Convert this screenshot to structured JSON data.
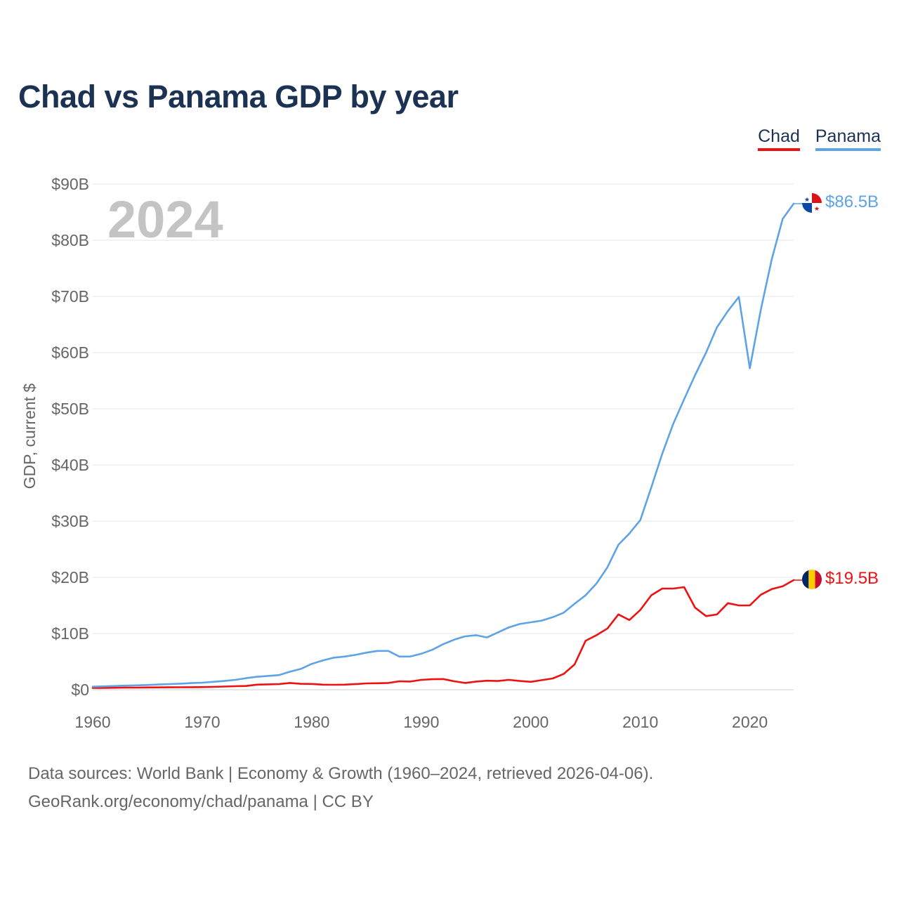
{
  "header": {
    "title": "Chad vs Panama GDP by year"
  },
  "legend": {
    "items": [
      {
        "label": "Chad",
        "color": "#ee1111"
      },
      {
        "label": "Panama",
        "color": "#5da3e6"
      }
    ]
  },
  "year_watermark": "2024",
  "end_labels": {
    "panama": "$86.5B",
    "chad": "$19.5B"
  },
  "footer": {
    "line1": "Data sources: World Bank | Economy & Growth (1960–2024, retrieved 2026-04-06).",
    "line2": "GeoRank.org/economy/chad/panama | CC BY"
  },
  "chart_data": {
    "type": "line",
    "title": "Chad vs Panama GDP by year",
    "xlabel": "",
    "ylabel": "GDP, current $",
    "xlim": [
      1960,
      2024
    ],
    "ylim": [
      0,
      90
    ],
    "x_ticks": [
      1960,
      1970,
      1980,
      1990,
      2000,
      2010,
      2020
    ],
    "x_tick_labels": [
      "1960",
      "1970",
      "1980",
      "1990",
      "2000",
      "2010",
      "2020"
    ],
    "y_ticks": [
      0,
      10,
      20,
      30,
      40,
      50,
      60,
      70,
      80,
      90
    ],
    "y_tick_labels": [
      "$0",
      "$10B",
      "$20B",
      "$30B",
      "$40B",
      "$50B",
      "$60B",
      "$70B",
      "$80B",
      "$90B"
    ],
    "grid": true,
    "legend_position": "top-right",
    "series": [
      {
        "name": "Chad",
        "color": "#ee1111",
        "x": [
          1960,
          1961,
          1962,
          1963,
          1964,
          1965,
          1966,
          1967,
          1968,
          1969,
          1970,
          1971,
          1972,
          1973,
          1974,
          1975,
          1976,
          1977,
          1978,
          1979,
          1980,
          1981,
          1982,
          1983,
          1984,
          1985,
          1986,
          1987,
          1988,
          1989,
          1990,
          1991,
          1992,
          1993,
          1994,
          1995,
          1996,
          1997,
          1998,
          1999,
          2000,
          2001,
          2002,
          2003,
          2004,
          2005,
          2006,
          2007,
          2008,
          2009,
          2010,
          2011,
          2012,
          2013,
          2014,
          2015,
          2016,
          2017,
          2018,
          2019,
          2020,
          2021,
          2022,
          2023,
          2024
        ],
        "values": [
          0.31,
          0.33,
          0.35,
          0.37,
          0.38,
          0.4,
          0.41,
          0.42,
          0.44,
          0.45,
          0.46,
          0.5,
          0.56,
          0.62,
          0.66,
          0.9,
          0.95,
          1.0,
          1.2,
          1.05,
          1.03,
          0.9,
          0.88,
          0.9,
          1.0,
          1.12,
          1.15,
          1.2,
          1.5,
          1.45,
          1.75,
          1.86,
          1.9,
          1.5,
          1.2,
          1.45,
          1.6,
          1.55,
          1.75,
          1.55,
          1.4,
          1.7,
          2.0,
          2.8,
          4.5,
          8.7,
          9.7,
          10.9,
          13.4,
          12.4,
          14.2,
          16.8,
          18.0,
          18.0,
          18.25,
          14.6,
          13.1,
          13.4,
          15.4,
          15.0,
          15.0,
          16.9,
          17.9,
          18.4,
          19.5
        ]
      },
      {
        "name": "Panama",
        "color": "#5da3e6",
        "x": [
          1960,
          1961,
          1962,
          1963,
          1964,
          1965,
          1966,
          1967,
          1968,
          1969,
          1970,
          1971,
          1972,
          1973,
          1974,
          1975,
          1976,
          1977,
          1978,
          1979,
          1980,
          1981,
          1982,
          1983,
          1984,
          1985,
          1986,
          1987,
          1988,
          1989,
          1990,
          1991,
          1992,
          1993,
          1994,
          1995,
          1996,
          1997,
          1998,
          1999,
          2000,
          2001,
          2002,
          2003,
          2004,
          2005,
          2006,
          2007,
          2008,
          2009,
          2010,
          2011,
          2012,
          2013,
          2014,
          2015,
          2016,
          2017,
          2018,
          2019,
          2020,
          2021,
          2022,
          2023,
          2024
        ],
        "values": [
          0.54,
          0.6,
          0.66,
          0.72,
          0.78,
          0.84,
          0.92,
          1.0,
          1.08,
          1.17,
          1.25,
          1.4,
          1.55,
          1.75,
          2.05,
          2.3,
          2.45,
          2.6,
          3.2,
          3.7,
          4.6,
          5.2,
          5.7,
          5.9,
          6.2,
          6.6,
          6.9,
          6.9,
          5.9,
          5.9,
          6.4,
          7.1,
          8.1,
          8.9,
          9.5,
          9.7,
          9.3,
          10.2,
          11.1,
          11.7,
          12.0,
          12.3,
          12.9,
          13.7,
          15.3,
          16.8,
          18.9,
          21.8,
          25.8,
          27.8,
          30.2,
          36.0,
          42.0,
          47.3,
          51.7,
          56.0,
          60.0,
          64.5,
          67.4,
          69.9,
          57.2,
          67.6,
          76.6,
          83.8,
          86.5
        ]
      }
    ]
  }
}
